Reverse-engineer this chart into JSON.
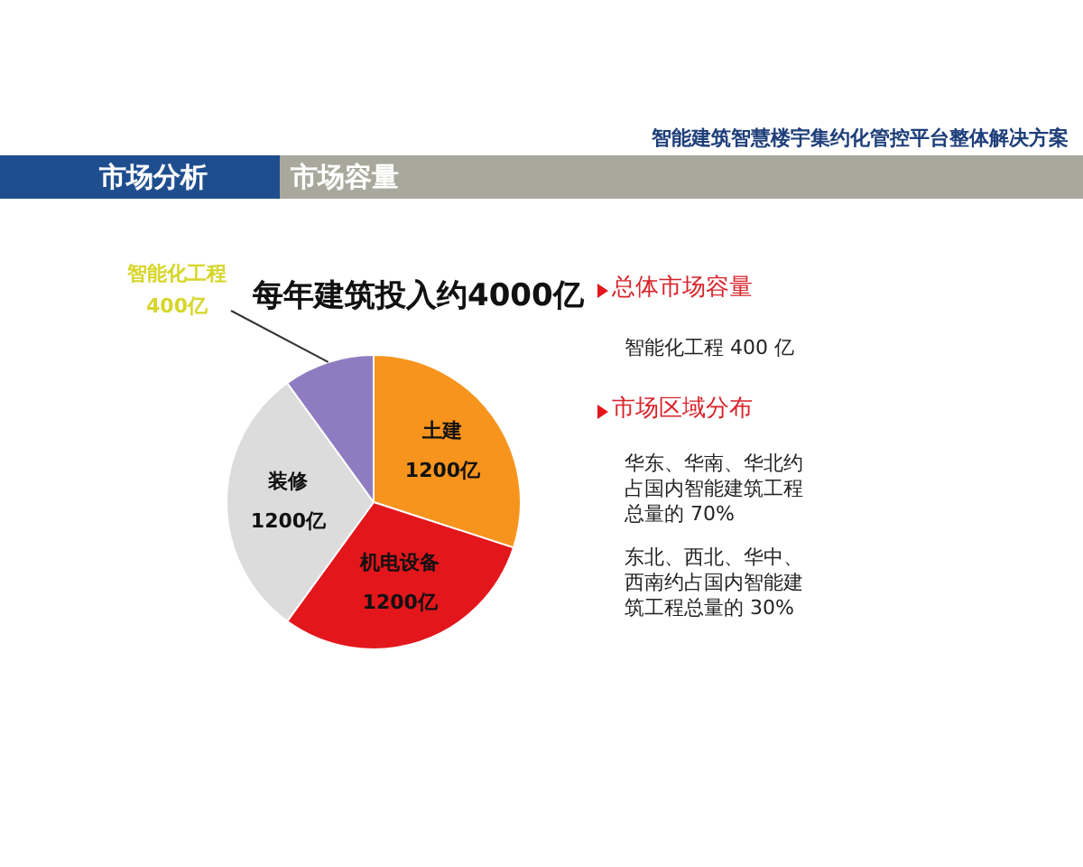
{
  "chart_data": {
    "type": "pie",
    "title": "每年建筑投入约4000亿",
    "categories": [
      "土建",
      "机电设备",
      "装修",
      "智能化工程"
    ],
    "values": [
      1200,
      1200,
      1200,
      400
    ],
    "colors": [
      "#f7941d",
      "#e3161c",
      "#dcdcdc",
      "#8f7cc0"
    ],
    "value_labels": [
      "1200亿",
      "1200亿",
      "1200亿",
      "400亿"
    ],
    "legend": false,
    "annotations": [
      "智能建筑智慧楼宇集约化管控平台整体解决方案",
      "市场分析",
      "市场容量",
      "总体市场容量",
      "智能化工程 400 亿",
      "市场区域分布",
      "华东、华南、华北约占国内智能建筑工程总量的 70%",
      "东北、西北、华中、西南约占国内智能建筑工程总量的 30%"
    ]
  }
}
